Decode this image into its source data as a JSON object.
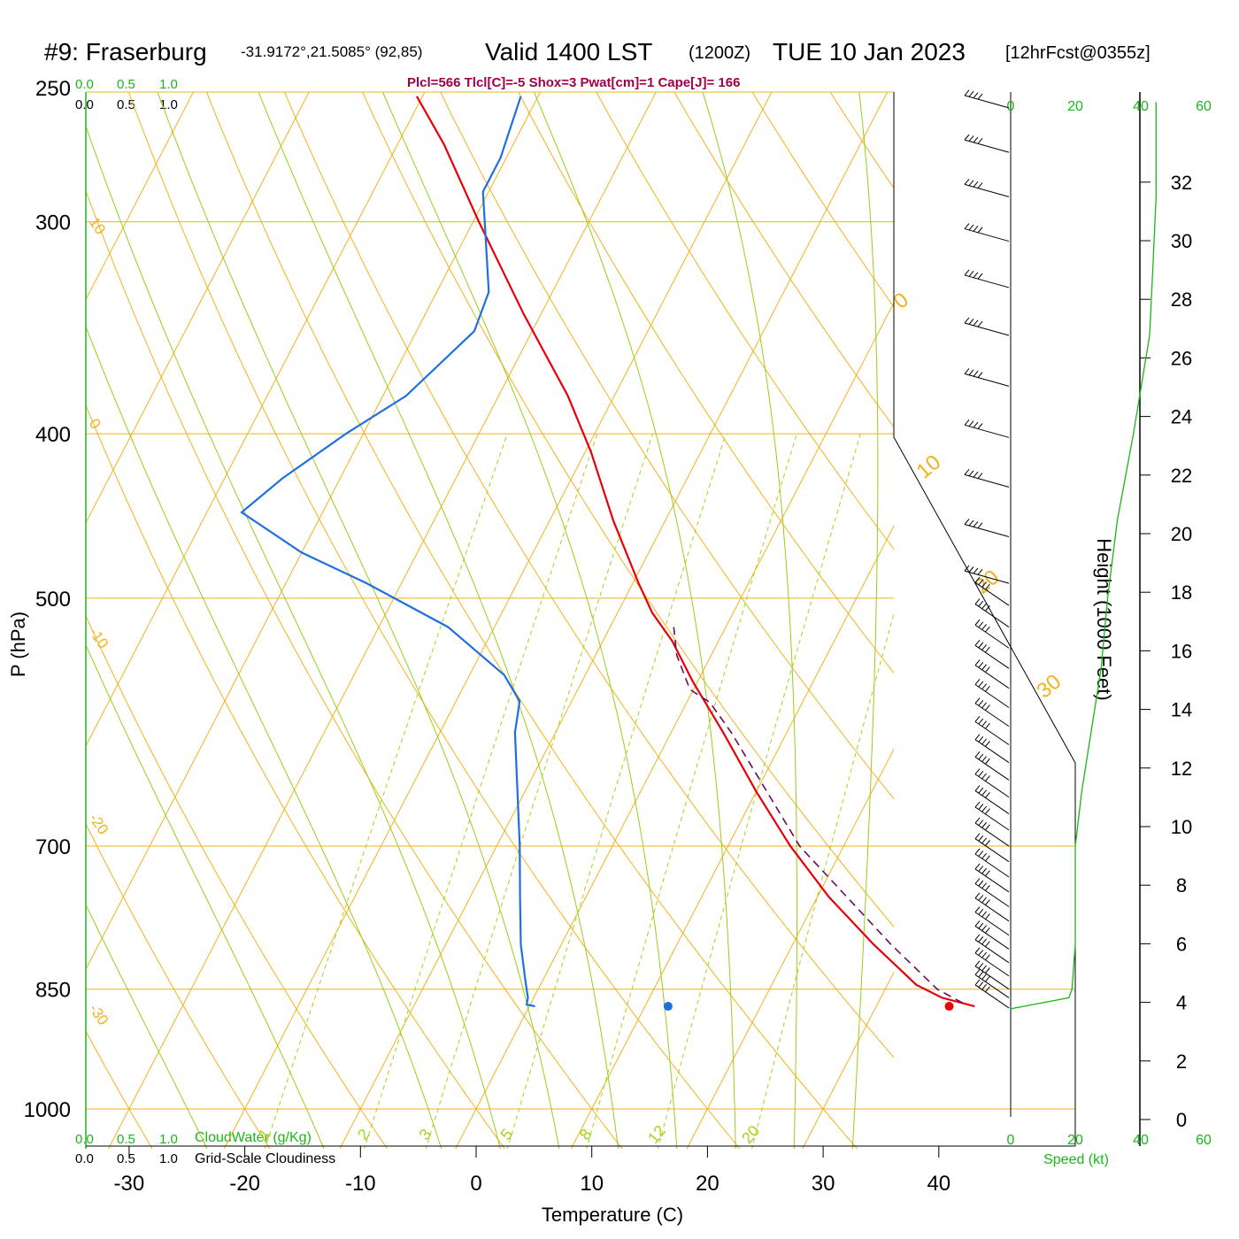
{
  "header": {
    "station": "#9: Fraserburg",
    "coords": "-31.9172°,21.5085° (92,85)",
    "valid": "Valid 1400 LST",
    "zulu": "(1200Z)",
    "date": "TUE 10 Jan 2023",
    "fcst": "[12hrFcst@0355z]",
    "indices": "Plcl=566 Tlcl[C]=-5 Shox=3 Pwat[cm]=1 Cape[J]= 166"
  },
  "colors": {
    "temperature": "#e8000b",
    "dewpoint": "#1f6fe0",
    "parcel": "#6a0a5a",
    "isotherm": "#f2b21a",
    "dry_adiabat": "#f2b21a",
    "moist_adiabat": "#9ccc1a",
    "mixing_ratio": "#a8d21a",
    "green_text": "#1bb61b",
    "indices": "#a0004a",
    "black": "#000000"
  },
  "chart_data": {
    "type": "line",
    "title": "#9: Fraserburg  Valid 1400 LST (1200Z) TUE 10 Jan 2023",
    "xlabel": "Temperature (C)",
    "ylabel": "P (hPa)",
    "y2label": "Height (1000 Feet)",
    "xlim": [
      -34,
      36
    ],
    "ylim": [
      1030,
      250
    ],
    "log_scale_y": true,
    "skew_deg_per_log10p": 76,
    "x_ticks": [
      -30,
      -20,
      -10,
      0,
      10,
      20,
      30,
      40
    ],
    "y_ticks": [
      250,
      300,
      400,
      500,
      700,
      850,
      1000
    ],
    "height_ticks_kft": [
      0,
      2,
      4,
      6,
      8,
      10,
      12,
      14,
      16,
      18,
      20,
      22,
      24,
      26,
      28,
      30,
      32
    ],
    "isotherm_labels": [
      "10",
      "0",
      "-10",
      "-20",
      "-30",
      "0",
      "10",
      "20",
      "30"
    ],
    "mixing_ratio_labels": [
      "1",
      "2",
      "3",
      "5",
      "8",
      "12",
      "20"
    ],
    "mixing_ratio_values": [
      1,
      2,
      3,
      5,
      8,
      12,
      20
    ],
    "cloud_water_scale": {
      "ticks": [
        "0.0",
        "0.5",
        "1.0"
      ],
      "label": "CloudWater (g/Kg)"
    },
    "cloudiness_scale": {
      "ticks": [
        "0.0",
        "0.5",
        "1.0"
      ],
      "label": "Grid-Scale Cloudiness"
    },
    "wind_speed_scale": {
      "ticks": [
        "0",
        "20",
        "40",
        "60"
      ],
      "label": "Speed (kt)"
    },
    "series": [
      {
        "name": "Temperature",
        "points": [
          [
            870,
            38.5
          ],
          [
            860,
            35.3
          ],
          [
            845,
            32.5
          ],
          [
            800,
            27.0
          ],
          [
            750,
            21.0
          ],
          [
            700,
            15.4
          ],
          [
            650,
            10.0
          ],
          [
            600,
            4.5
          ],
          [
            560,
            -0.4
          ],
          [
            530,
            -4.0
          ],
          [
            510,
            -7.0
          ],
          [
            490,
            -9.5
          ],
          [
            450,
            -14.5
          ],
          [
            410,
            -19.5
          ],
          [
            380,
            -24.0
          ],
          [
            340,
            -31.5
          ],
          [
            300,
            -39.5
          ],
          [
            270,
            -46.0
          ],
          [
            253,
            -50.5
          ]
        ]
      },
      {
        "name": "Dewpoint",
        "points": [
          [
            870,
            0.5
          ],
          [
            868,
            -0.3
          ],
          [
            860,
            -0.5
          ],
          [
            840,
            -1.5
          ],
          [
            800,
            -3.5
          ],
          [
            750,
            -5.7
          ],
          [
            700,
            -8.0
          ],
          [
            600,
            -13.5
          ],
          [
            575,
            -14.5
          ],
          [
            555,
            -17.0
          ],
          [
            520,
            -24.0
          ],
          [
            490,
            -33.0
          ],
          [
            470,
            -40.0
          ],
          [
            445,
            -47.0
          ],
          [
            425,
            -45.0
          ],
          [
            400,
            -41.5
          ],
          [
            380,
            -38.0
          ],
          [
            348,
            -35.0
          ],
          [
            330,
            -35.5
          ],
          [
            300,
            -39.0
          ],
          [
            288,
            -40.5
          ],
          [
            275,
            -40.5
          ],
          [
            253,
            -41.5
          ]
        ]
      },
      {
        "name": "Parcel",
        "points": [
          [
            866,
            37.3
          ],
          [
            850,
            34.5
          ],
          [
            800,
            28.5
          ],
          [
            700,
            16.2
          ],
          [
            600,
            5.2
          ],
          [
            576,
            2.0
          ],
          [
            566,
            -0.3
          ],
          [
            540,
            -3.0
          ],
          [
            520,
            -4.5
          ]
        ]
      }
    ],
    "surface_points": {
      "temperature": [
        870,
        38.9
      ],
      "dewpoint": [
        870,
        14.6
      ]
    },
    "winds": [
      {
        "p": 872,
        "speed": 35,
        "dir": 300
      },
      {
        "p": 860,
        "speed": 35,
        "dir": 300
      },
      {
        "p": 850,
        "speed": 35,
        "dir": 300
      },
      {
        "p": 835,
        "speed": 35,
        "dir": 300
      },
      {
        "p": 820,
        "speed": 35,
        "dir": 300
      },
      {
        "p": 805,
        "speed": 35,
        "dir": 300
      },
      {
        "p": 790,
        "speed": 35,
        "dir": 300
      },
      {
        "p": 775,
        "speed": 35,
        "dir": 300
      },
      {
        "p": 760,
        "speed": 35,
        "dir": 300
      },
      {
        "p": 745,
        "speed": 35,
        "dir": 300
      },
      {
        "p": 730,
        "speed": 35,
        "dir": 300
      },
      {
        "p": 715,
        "speed": 35,
        "dir": 300
      },
      {
        "p": 700,
        "speed": 35,
        "dir": 300
      },
      {
        "p": 685,
        "speed": 35,
        "dir": 300
      },
      {
        "p": 670,
        "speed": 35,
        "dir": 300
      },
      {
        "p": 655,
        "speed": 35,
        "dir": 300
      },
      {
        "p": 640,
        "speed": 35,
        "dir": 300
      },
      {
        "p": 625,
        "speed": 35,
        "dir": 300
      },
      {
        "p": 610,
        "speed": 35,
        "dir": 300
      },
      {
        "p": 595,
        "speed": 35,
        "dir": 300
      },
      {
        "p": 580,
        "speed": 35,
        "dir": 300
      },
      {
        "p": 565,
        "speed": 35,
        "dir": 300
      },
      {
        "p": 550,
        "speed": 35,
        "dir": 300
      },
      {
        "p": 535,
        "speed": 35,
        "dir": 300
      },
      {
        "p": 520,
        "speed": 35,
        "dir": 300
      },
      {
        "p": 505,
        "speed": 35,
        "dir": 300
      },
      {
        "p": 490,
        "speed": 35,
        "dir": 300
      },
      {
        "p": 460,
        "speed": 35,
        "dir": 300
      },
      {
        "p": 430,
        "speed": 35,
        "dir": 300
      },
      {
        "p": 402,
        "speed": 35,
        "dir": 300
      },
      {
        "p": 375,
        "speed": 35,
        "dir": 300
      },
      {
        "p": 350,
        "speed": 35,
        "dir": 300
      },
      {
        "p": 328,
        "speed": 35,
        "dir": 300
      },
      {
        "p": 308,
        "speed": 35,
        "dir": 300
      },
      {
        "p": 290,
        "speed": 35,
        "dir": 300
      },
      {
        "p": 273,
        "speed": 35,
        "dir": 300
      },
      {
        "p": 257,
        "speed": 35,
        "dir": 300
      }
    ],
    "wind_speed_profile": [
      [
        873,
        0
      ],
      [
        870,
        4
      ],
      [
        860,
        18
      ],
      [
        850,
        19
      ],
      [
        800,
        20
      ],
      [
        700,
        20
      ],
      [
        650,
        22
      ],
      [
        550,
        28
      ],
      [
        500,
        30
      ],
      [
        450,
        33
      ],
      [
        400,
        38
      ],
      [
        350,
        43
      ],
      [
        320,
        44
      ],
      [
        290,
        45
      ],
      [
        255,
        45
      ]
    ]
  }
}
